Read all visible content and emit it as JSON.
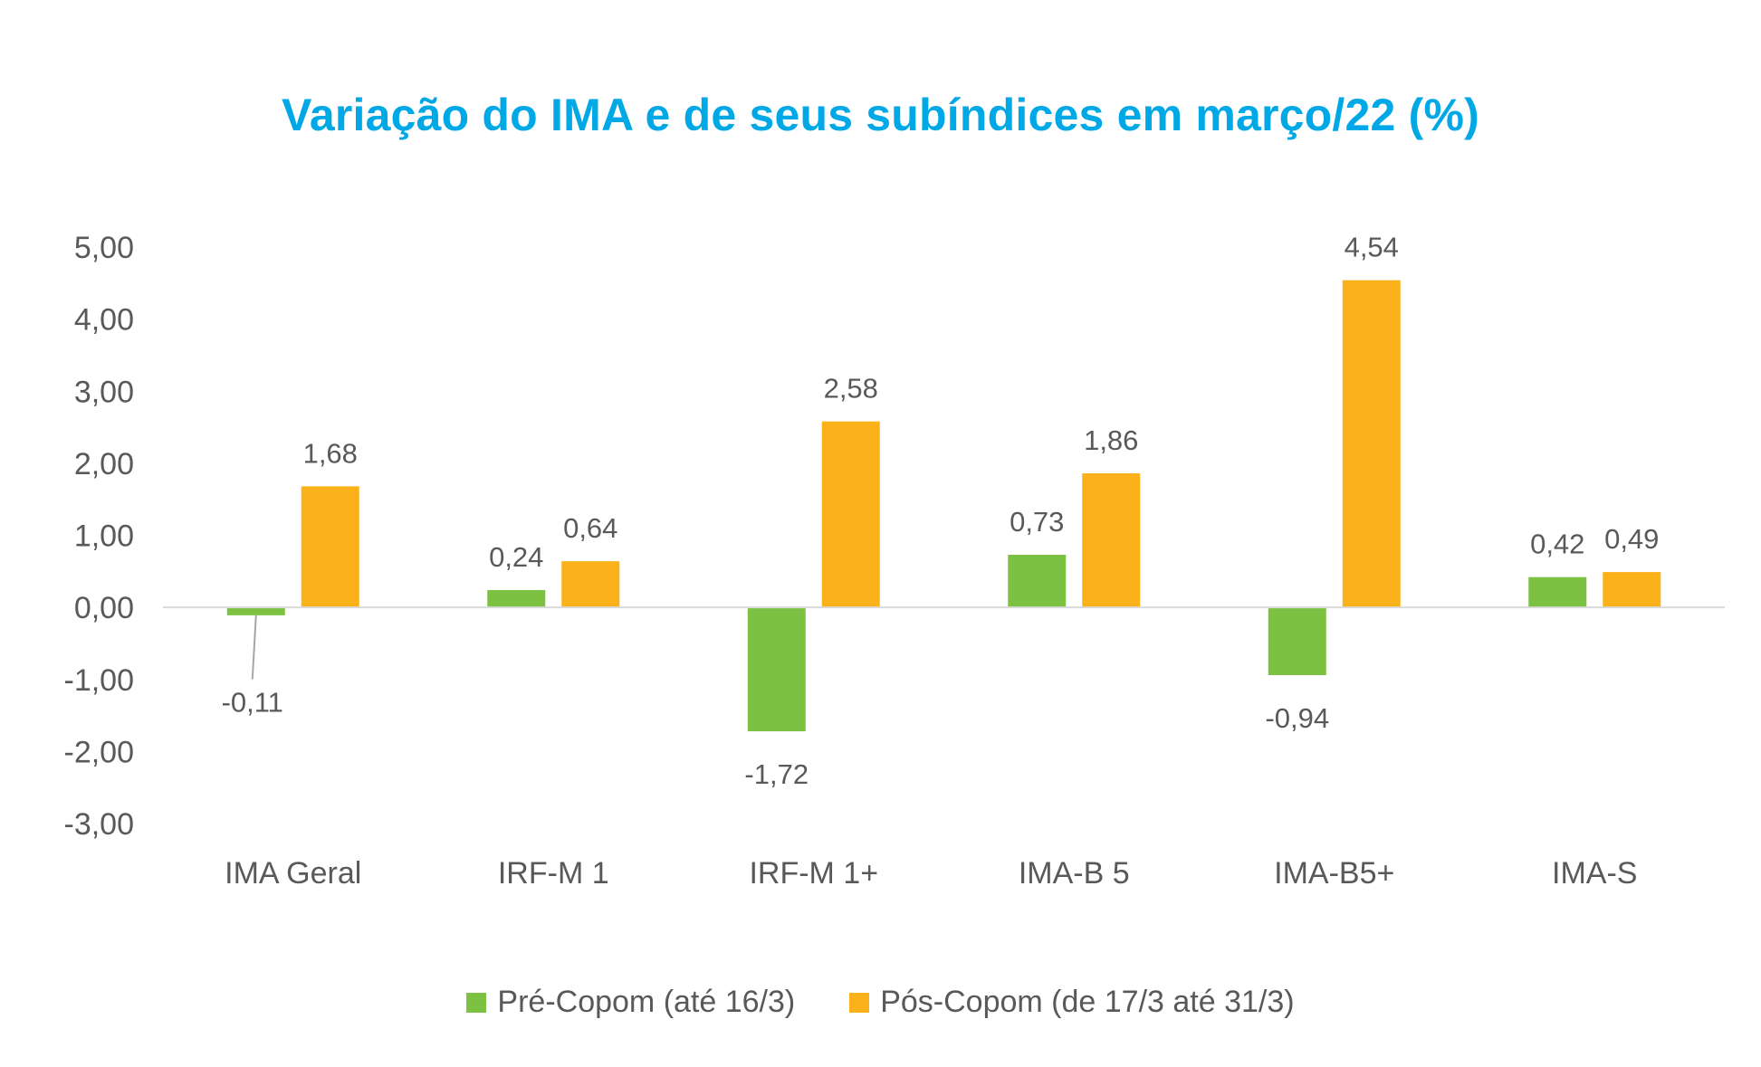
{
  "colors": {
    "pre": "#7dc142",
    "pos": "#fbb11a",
    "title": "#00a8e6",
    "text": "#595959",
    "axis": "#d9d9d9",
    "leader": "#a6a6a6"
  },
  "chart_data": {
    "type": "bar",
    "title": "Variação do IMA e de seus subíndices em março/22 (%)",
    "xlabel": "",
    "ylabel": "",
    "ylim": [
      -3,
      5
    ],
    "yticks": [
      "5,00",
      "4,00",
      "3,00",
      "2,00",
      "1,00",
      "0,00",
      "-1,00",
      "-2,00",
      "-3,00"
    ],
    "ytick_values": [
      5,
      4,
      3,
      2,
      1,
      0,
      -1,
      -2,
      -3
    ],
    "grid": false,
    "legend_position": "bottom",
    "categories": [
      "IMA Geral",
      "IRF-M 1",
      "IRF-M 1+",
      "IMA-B 5",
      "IMA-B5+",
      "IMA-S"
    ],
    "series": [
      {
        "name": "Pré-Copom (até 16/3)",
        "values": [
          -0.11,
          0.24,
          -1.72,
          0.73,
          -0.94,
          0.42
        ],
        "labels": [
          "-0,11",
          "0,24",
          "-1,72",
          "0,73",
          "-0,94",
          "0,42"
        ]
      },
      {
        "name": "Pós-Copom (de 17/3 até 31/3)",
        "values": [
          1.68,
          0.64,
          2.58,
          1.86,
          4.54,
          0.49
        ],
        "labels": [
          "1,68",
          "0,64",
          "2,58",
          "1,86",
          "4,54",
          "0,49"
        ]
      }
    ]
  }
}
